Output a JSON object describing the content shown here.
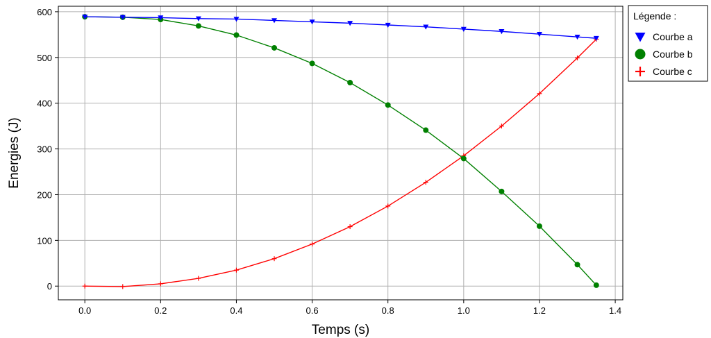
{
  "chart_data": {
    "type": "line",
    "title": "",
    "xlabel": "Temps (s)",
    "ylabel": "Energies (J)",
    "xlim": [
      -0.07,
      1.42
    ],
    "ylim": [
      -30,
      612
    ],
    "xticks": [
      0.0,
      0.2,
      0.4,
      0.6,
      0.8,
      1.0,
      1.2,
      1.4
    ],
    "xtick_labels": [
      "0.0",
      "0.2",
      "0.4",
      "0.6",
      "0.8",
      "1.0",
      "1.2",
      "1.4"
    ],
    "yticks": [
      0,
      100,
      200,
      300,
      400,
      500,
      600
    ],
    "ytick_labels": [
      "0",
      "100",
      "200",
      "300",
      "400",
      "500",
      "600"
    ],
    "grid": true,
    "legend": {
      "title": "Légende :",
      "placement": "outside-top-right"
    },
    "series": [
      {
        "name": "Courbe a",
        "color": "#0000ff",
        "marker": "triangle-down",
        "x": [
          0.0,
          0.1,
          0.2,
          0.3,
          0.4,
          0.5,
          0.6,
          0.7,
          0.8,
          0.9,
          1.0,
          1.1,
          1.2,
          1.3,
          1.35
        ],
        "y": [
          589,
          588,
          587,
          585,
          584,
          581,
          578,
          575,
          571,
          567,
          562,
          557,
          551,
          545,
          542
        ]
      },
      {
        "name": "Courbe b",
        "color": "#008000",
        "marker": "circle",
        "x": [
          0.0,
          0.1,
          0.2,
          0.3,
          0.4,
          0.5,
          0.6,
          0.7,
          0.8,
          0.9,
          1.0,
          1.1,
          1.2,
          1.3,
          1.35
        ],
        "y": [
          589,
          588,
          583,
          569,
          549,
          521,
          487,
          445,
          396,
          341,
          279,
          207,
          131,
          47,
          2
        ]
      },
      {
        "name": "Courbe c",
        "color": "#ff0000",
        "marker": "plus",
        "x": [
          0.0,
          0.1,
          0.2,
          0.3,
          0.4,
          0.5,
          0.6,
          0.7,
          0.8,
          0.9,
          1.0,
          1.1,
          1.2,
          1.3,
          1.35
        ],
        "y": [
          0,
          -1,
          5,
          17,
          35,
          60,
          92,
          130,
          175,
          227,
          285,
          350,
          421,
          499,
          540
        ]
      }
    ]
  }
}
